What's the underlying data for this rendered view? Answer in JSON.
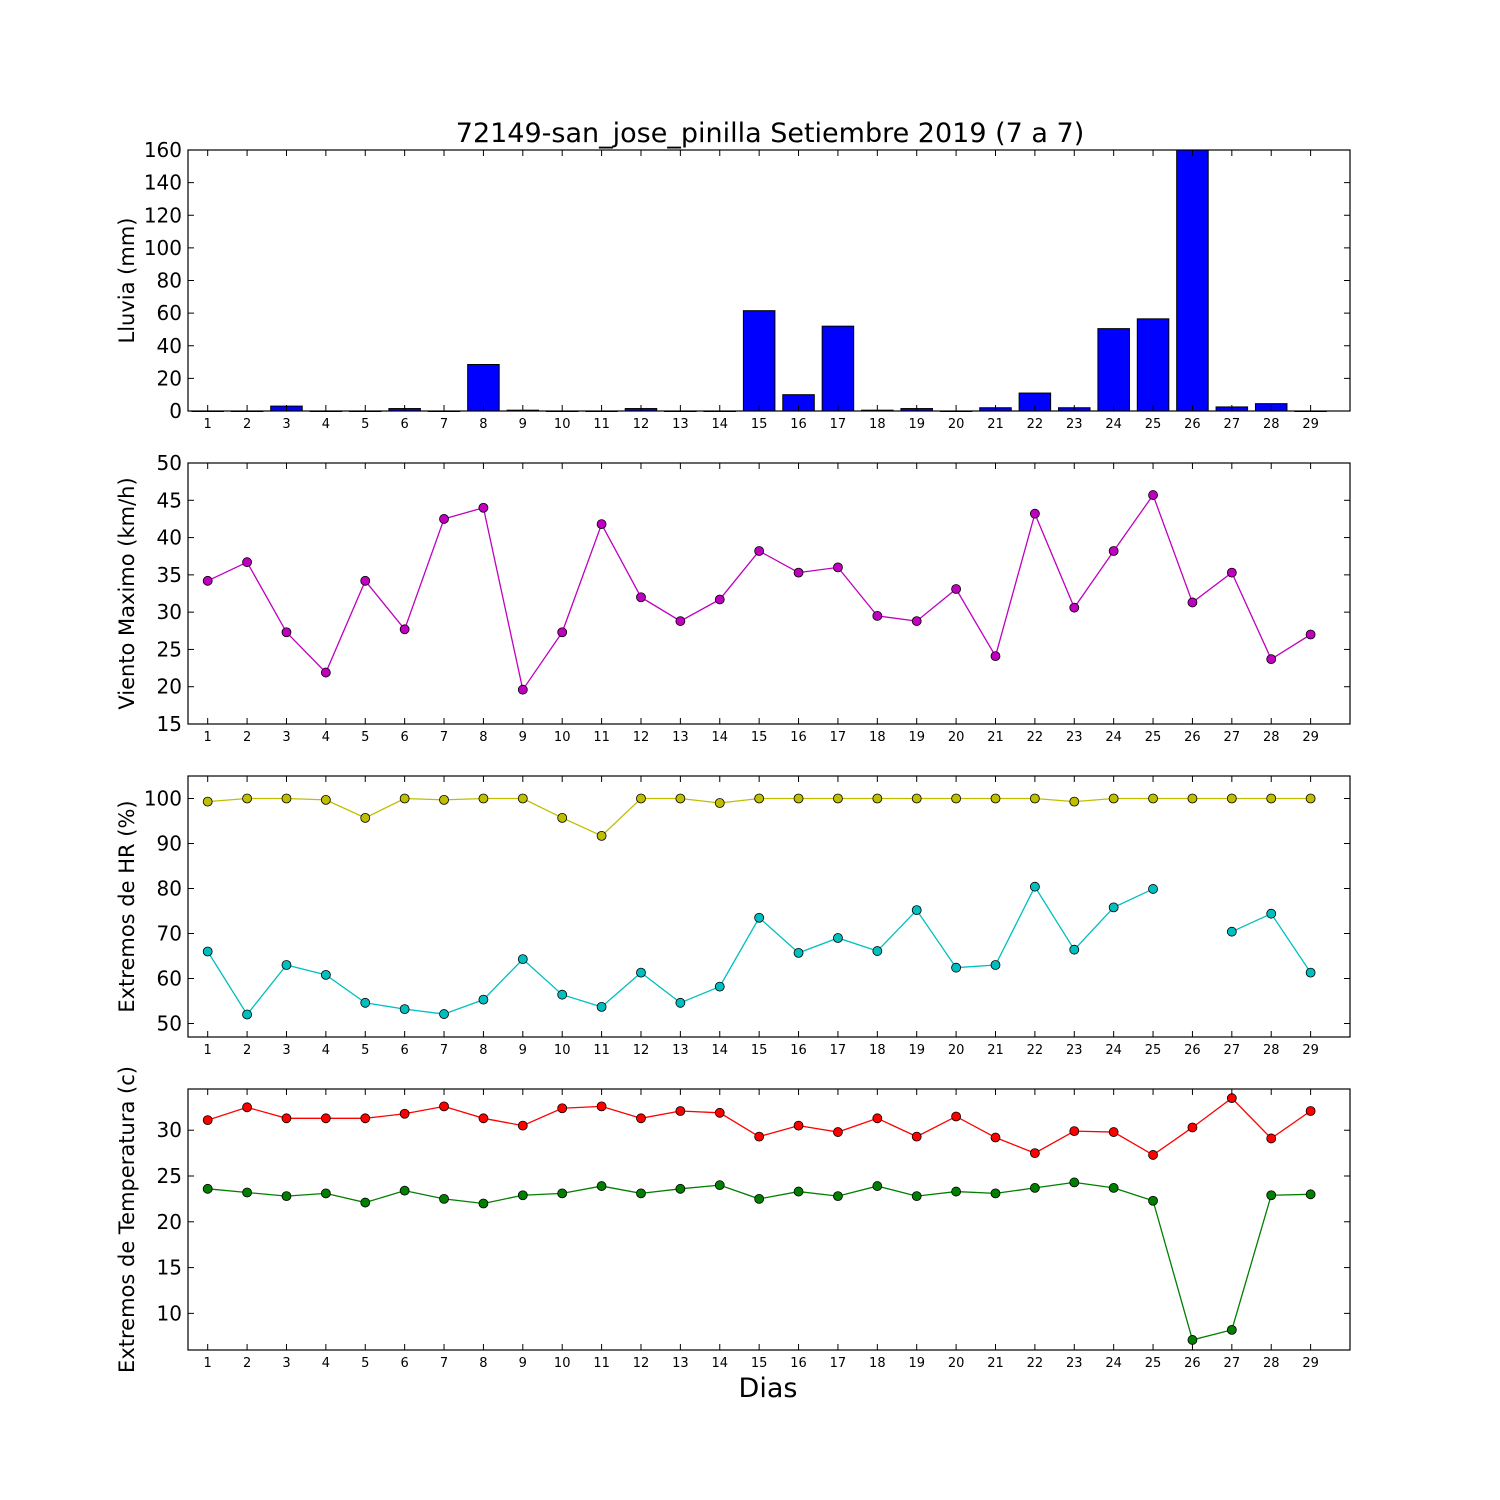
{
  "title": "72149-san_jose_pinilla Setiembre 2019  (7 a 7)",
  "xlabel": "Dias",
  "days": [
    "1",
    "2",
    "3",
    "4",
    "5",
    "6",
    "7",
    "8",
    "9",
    "10",
    "11",
    "12",
    "13",
    "14",
    "15",
    "16",
    "17",
    "18",
    "19",
    "20",
    "21",
    "22",
    "23",
    "24",
    "25",
    "26",
    "27",
    "28",
    "29"
  ],
  "chart_data": [
    {
      "type": "bar",
      "ylabel": "Lluvia (mm)",
      "ylim": [
        0,
        160
      ],
      "yticks": [
        0,
        20,
        40,
        60,
        80,
        100,
        120,
        140,
        160
      ],
      "colors": {
        "fill": "#0000ff"
      },
      "series": [
        {
          "values": [
            0,
            0,
            3,
            0,
            0,
            1.5,
            0,
            28.5,
            0.5,
            0,
            0,
            1.5,
            0,
            0,
            61.5,
            10,
            52,
            0.5,
            1.5,
            0,
            2,
            11,
            2,
            50.5,
            56.5,
            160,
            2.5,
            4.5,
            0
          ]
        }
      ]
    },
    {
      "type": "line",
      "ylabel": "Viento Maximo (km/h)",
      "ylim": [
        15,
        50
      ],
      "yticks": [
        15,
        20,
        25,
        30,
        35,
        40,
        45,
        50
      ],
      "colors": {
        "line": "#bf00bf"
      },
      "series": [
        {
          "color": "#bf00bf",
          "values": [
            34.2,
            36.7,
            27.3,
            21.9,
            34.2,
            27.7,
            42.5,
            44,
            19.6,
            27.3,
            41.8,
            32,
            28.8,
            31.7,
            38.2,
            35.3,
            36,
            29.5,
            28.8,
            33.1,
            24.1,
            43.2,
            30.6,
            38.2,
            45.7,
            31.3,
            35.3,
            23.7,
            27
          ]
        }
      ]
    },
    {
      "type": "line",
      "ylabel": "Extremos de HR (%)",
      "ylim": [
        47,
        105
      ],
      "yticks": [
        50,
        60,
        70,
        80,
        90,
        100
      ],
      "colors": {
        "max": "#bfbf00",
        "min": "#00bfbf"
      },
      "series": [
        {
          "color": "#bfbf00",
          "values": [
            99.3,
            100,
            100,
            99.7,
            95.7,
            100,
            99.7,
            100,
            100,
            95.7,
            91.7,
            100,
            100,
            99,
            100,
            100,
            100,
            100,
            100,
            100,
            100,
            100,
            99.3,
            100,
            100,
            100,
            100,
            100,
            100
          ]
        },
        {
          "color": "#00bfbf",
          "values": [
            66,
            52,
            63,
            60.8,
            54.6,
            53.2,
            52.1,
            55.3,
            64.3,
            56.4,
            53.7,
            61.3,
            54.6,
            58.2,
            73.5,
            65.7,
            69,
            66.1,
            75.2,
            62.4,
            63,
            80.4,
            66.4,
            75.8,
            79.9,
            null,
            70.4,
            74.4,
            61.3
          ]
        }
      ]
    },
    {
      "type": "line",
      "ylabel": "Extremos de Temperatura (c)",
      "ylim": [
        6,
        34.5
      ],
      "yticks": [
        10,
        15,
        20,
        25,
        30
      ],
      "colors": {
        "max": "#ff0000",
        "min": "#007f00"
      },
      "series": [
        {
          "color": "#ff0000",
          "values": [
            31.1,
            32.5,
            31.3,
            31.3,
            31.3,
            31.8,
            32.6,
            31.3,
            30.5,
            32.4,
            32.6,
            31.3,
            32.1,
            31.9,
            29.3,
            30.5,
            29.8,
            31.3,
            29.3,
            31.5,
            29.2,
            27.5,
            29.9,
            29.8,
            27.3,
            30.3,
            33.5,
            29.1,
            32.1
          ]
        },
        {
          "color": "#007f00",
          "values": [
            23.6,
            23.2,
            22.8,
            23.1,
            22.1,
            23.4,
            22.5,
            22,
            22.9,
            23.1,
            23.9,
            23.1,
            23.6,
            24,
            22.5,
            23.3,
            22.8,
            23.9,
            22.8,
            23.3,
            23.1,
            23.7,
            24.3,
            23.7,
            22.3,
            7.1,
            8.2,
            22.9,
            23
          ]
        }
      ]
    }
  ]
}
